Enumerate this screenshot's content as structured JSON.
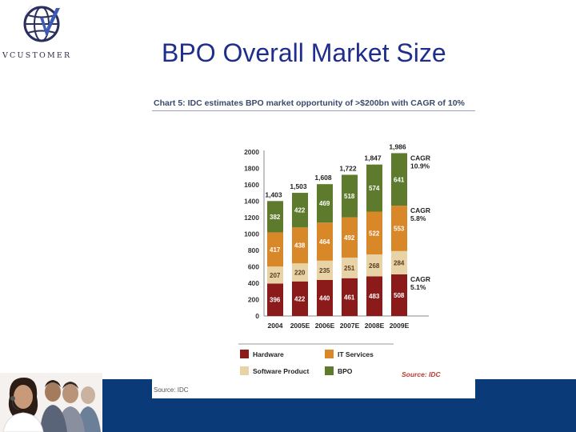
{
  "slide": {
    "title": "BPO Overall Market Size",
    "logo_text": "VCUSTOMER",
    "chart_heading": "Chart 5: IDC estimates BPO market opportunity of >$200bn with CAGR of 10%",
    "source_small": "Source: IDC"
  },
  "chart_data": {
    "type": "bar",
    "stacked": true,
    "categories": [
      "2004",
      "2005E",
      "2006E",
      "2007E",
      "2008E",
      "2009E"
    ],
    "series": [
      {
        "name": "Hardware",
        "color": "#8b1a1a",
        "values": [
          396,
          422,
          440,
          461,
          483,
          508
        ]
      },
      {
        "name": "Software Product",
        "color": "#e8d3a6",
        "values": [
          207,
          220,
          235,
          251,
          268,
          284
        ]
      },
      {
        "name": "IT Services",
        "color": "#d98829",
        "values": [
          417,
          438,
          464,
          492,
          522,
          553
        ]
      },
      {
        "name": "BPO",
        "color": "#5e7a2c",
        "values": [
          382,
          422,
          469,
          518,
          574,
          641
        ]
      }
    ],
    "totals": [
      "1,403",
      "1,503",
      "1,608",
      "1,722",
      "1,847",
      "1,986"
    ],
    "yticks": [
      0,
      200,
      400,
      600,
      800,
      1000,
      1200,
      1400,
      1600,
      1800,
      2000
    ],
    "ylim": [
      0,
      2000
    ],
    "cagr_labels": [
      {
        "series": "BPO",
        "lines": [
          "CAGR",
          "10.9%"
        ]
      },
      {
        "series": "IT Services",
        "lines": [
          "CAGR",
          "5.8%"
        ]
      },
      {
        "series": "Hardware",
        "lines": [
          "CAGR",
          "5.1%"
        ]
      }
    ],
    "legend_placement": "bottom",
    "legend_order": [
      "Hardware",
      "IT Services",
      "Software Product",
      "BPO"
    ],
    "source": "Source: IDC"
  }
}
